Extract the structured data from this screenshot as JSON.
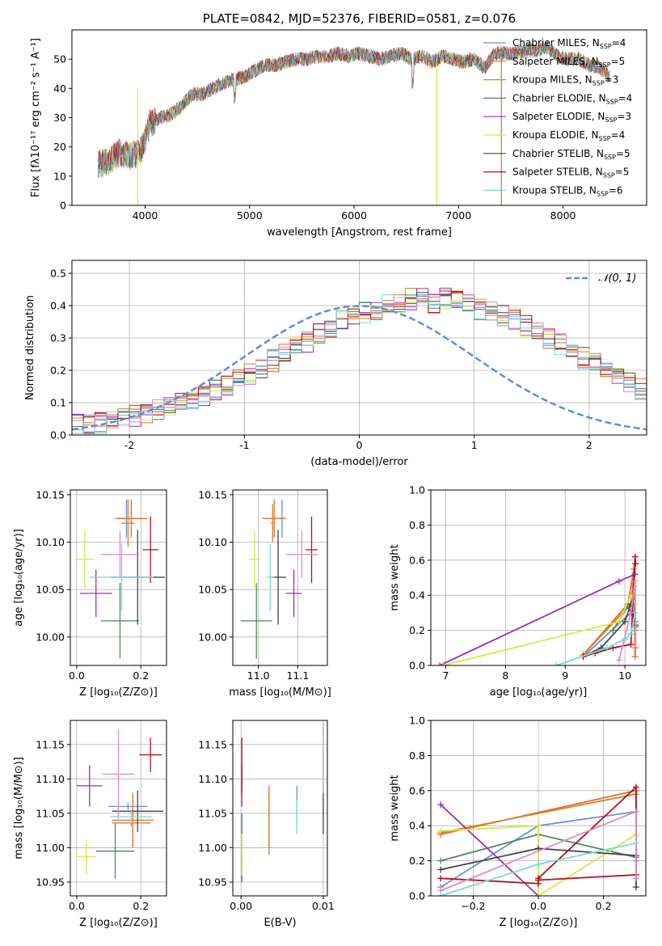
{
  "chart_data": [
    {
      "id": "spectrum",
      "type": "line",
      "title": "PLATE=0842, MJD=52376, FIBERID=0581, z=0.076",
      "xlabel": "wavelength [Angstrom, rest frame]",
      "ylabel": "Flux [fλ10⁻¹⁷ erg cm⁻² s⁻¹ A⁻¹]",
      "xlim": [
        3300,
        8800
      ],
      "ylim": [
        0,
        60
      ],
      "xticks": [
        4000,
        5000,
        6000,
        7000,
        8000
      ],
      "yticks": [
        0,
        10,
        20,
        30,
        40,
        50
      ],
      "legend_position": "top-right",
      "envelope": {
        "x": [
          3550,
          3650,
          3750,
          3850,
          3950,
          4050,
          4150,
          4250,
          4350,
          4450,
          4550,
          4650,
          4750,
          4850,
          4950,
          5050,
          5150,
          5250,
          5350,
          5450,
          5550,
          5650,
          5750,
          5850,
          5950,
          6050,
          6150,
          6250,
          6350,
          6450,
          6550,
          6650,
          6750,
          6850,
          6950,
          7050,
          7150,
          7250,
          7350,
          7450,
          7550,
          7650,
          7750,
          7850,
          7950,
          8050,
          8150,
          8250,
          8350,
          8450
        ],
        "y": [
          14,
          15,
          18,
          17,
          18,
          28,
          30,
          31,
          34,
          38,
          38,
          40,
          42,
          43,
          44,
          46,
          48,
          48,
          49,
          50,
          50,
          51,
          51,
          52,
          51,
          52,
          51,
          50,
          51,
          52,
          50,
          51,
          49,
          51,
          50,
          49,
          50,
          47,
          52,
          52,
          52,
          53,
          53,
          54,
          51,
          50,
          50,
          48,
          47,
          44
        ]
      },
      "series": [
        {
          "name": "Chabrier MILES, N_SSP=4",
          "color": "#6a8fd8"
        },
        {
          "name": "Salpeter MILES, N_SSP=5",
          "color": "#e56b2e"
        },
        {
          "name": "Kroupa MILES, N_SSP=3",
          "color": "#d4822a"
        },
        {
          "name": "Chabrier ELODIE, N_SSP=4",
          "color": "#4e8a5e"
        },
        {
          "name": "Salpeter ELODIE, N_SSP=3",
          "color": "#9b30b0"
        },
        {
          "name": "Kroupa ELODIE, N_SSP=4",
          "color": "#d6e64a"
        },
        {
          "name": "Chabrier STELIB, N_SSP=5",
          "color": "#444444"
        },
        {
          "name": "Salpeter STELIB, N_SSP=5",
          "color": "#b3141c"
        },
        {
          "name": "Kroupa STELIB, N_SSP=6",
          "color": "#7ad6e0"
        }
      ]
    },
    {
      "id": "residuals",
      "type": "line",
      "xlabel": "(data-model)/error",
      "ylabel": "Normed distribution",
      "xlim": [
        -2.5,
        2.5
      ],
      "ylim": [
        0,
        0.54
      ],
      "xticks": [
        -2,
        -1,
        0,
        1,
        2
      ],
      "yticks": [
        0.0,
        0.1,
        0.2,
        0.3,
        0.4,
        0.5
      ],
      "grid": true,
      "legend_position": "top-right",
      "reference": {
        "name": "𝒩(0, 1)",
        "color": "#5b8fd8",
        "style": "dashed"
      },
      "bin_width": 0.1,
      "hist_base": [
        0.03,
        0.03,
        0.035,
        0.04,
        0.05,
        0.06,
        0.07,
        0.08,
        0.09,
        0.1,
        0.11,
        0.12,
        0.14,
        0.155,
        0.17,
        0.185,
        0.21,
        0.23,
        0.25,
        0.27,
        0.29,
        0.31,
        0.33,
        0.35,
        0.37,
        0.38,
        0.39,
        0.4,
        0.41,
        0.42,
        0.42,
        0.41,
        0.42,
        0.41,
        0.4,
        0.39,
        0.38,
        0.37,
        0.36,
        0.34,
        0.32,
        0.3,
        0.28,
        0.26,
        0.24,
        0.22,
        0.2,
        0.18,
        0.16,
        0.14
      ]
    },
    {
      "id": "age_vs_Z",
      "type": "scatter",
      "xlabel": "Z [log₁₀(Z/Z⊙)]",
      "ylabel": "age  [log₁₀(age/yr)]",
      "xlim": [
        -0.02,
        0.28
      ],
      "ylim": [
        9.97,
        10.155
      ],
      "xticks": [
        0.0,
        0.2
      ],
      "yticks": [
        10.0,
        10.05,
        10.1,
        10.15
      ],
      "grid": true,
      "points": [
        {
          "x": 0.155,
          "y": 10.125,
          "xerr": 0.025,
          "yerr": 0.02,
          "color": "#6a8fd8"
        },
        {
          "x": 0.17,
          "y": 10.125,
          "xerr": 0.05,
          "yerr": 0.02,
          "color": "#e56b2e"
        },
        {
          "x": 0.16,
          "y": 10.12,
          "xerr": 0.02,
          "yerr": 0.025,
          "color": "#d4822a"
        },
        {
          "x": 0.135,
          "y": 10.017,
          "xerr": 0.06,
          "yerr": 0.04,
          "color": "#4e8a5e"
        },
        {
          "x": 0.06,
          "y": 10.046,
          "xerr": 0.05,
          "yerr": 0.025,
          "color": "#9b30b0"
        },
        {
          "x": 0.025,
          "y": 10.082,
          "xerr": 0.03,
          "yerr": 0.03,
          "color": "#d6e64a"
        },
        {
          "x": 0.19,
          "y": 10.063,
          "xerr": 0.085,
          "yerr": 0.05,
          "color": "#444444"
        },
        {
          "x": 0.23,
          "y": 10.092,
          "xerr": 0.025,
          "yerr": 0.035,
          "color": "#b3141c"
        },
        {
          "x": 0.135,
          "y": 10.087,
          "xerr": 0.06,
          "yerr": 0.025,
          "color": "#e28ac2"
        },
        {
          "x": 0.14,
          "y": 10.063,
          "xerr": 0.1,
          "yerr": 0.035,
          "color": "#7ad6e0"
        }
      ]
    },
    {
      "id": "age_vs_mass",
      "type": "scatter",
      "xlabel": "mass [log₁₀(M/M⊙)]",
      "ylabel": "",
      "xlim": [
        10.935,
        11.175
      ],
      "ylim": [
        9.97,
        10.155
      ],
      "xticks": [
        11.0,
        11.1
      ],
      "xticklabels": [
        "11.0",
        "11.1"
      ],
      "yticks": [
        10.0,
        10.05,
        10.1,
        10.15
      ],
      "grid": true,
      "points": [
        {
          "x": 11.06,
          "y": 10.125,
          "xerr": 0.005,
          "yerr": 0.02,
          "color": "#6a8fd8"
        },
        {
          "x": 11.04,
          "y": 10.125,
          "xerr": 0.03,
          "yerr": 0.02,
          "color": "#e56b2e"
        },
        {
          "x": 11.036,
          "y": 10.12,
          "xerr": 0.005,
          "yerr": 0.02,
          "color": "#d4822a"
        },
        {
          "x": 10.995,
          "y": 10.017,
          "xerr": 0.04,
          "yerr": 0.04,
          "color": "#4e8a5e"
        },
        {
          "x": 11.09,
          "y": 10.046,
          "xerr": 0.02,
          "yerr": 0.025,
          "color": "#9b30b0"
        },
        {
          "x": 10.99,
          "y": 10.082,
          "xerr": 0.015,
          "yerr": 0.03,
          "color": "#d6e64a"
        },
        {
          "x": 11.05,
          "y": 10.063,
          "xerr": 0.02,
          "yerr": 0.05,
          "color": "#444444"
        },
        {
          "x": 11.135,
          "y": 10.092,
          "xerr": 0.015,
          "yerr": 0.035,
          "color": "#b3141c"
        },
        {
          "x": 11.11,
          "y": 10.087,
          "xerr": 0.04,
          "yerr": 0.025,
          "color": "#e28ac2"
        },
        {
          "x": 11.03,
          "y": 10.063,
          "xerr": 0.01,
          "yerr": 0.035,
          "color": "#7ad6e0"
        }
      ]
    },
    {
      "id": "massweight_vs_age",
      "type": "line",
      "xlabel": "age  [log₁₀(age/yr)]",
      "ylabel": "mass weight",
      "xlim": [
        6.75,
        10.35
      ],
      "ylim": [
        0.0,
        1.0
      ],
      "xticks": [
        7,
        8,
        9,
        10
      ],
      "yticks": [
        0.0,
        0.2,
        0.4,
        0.6,
        0.8,
        1.0
      ],
      "grid": true,
      "series": [
        {
          "color": "#6a8fd8",
          "x": [
            9.3,
            10.1,
            10.15,
            10.17
          ],
          "y": [
            0.05,
            0.3,
            0.45,
            0.2
          ]
        },
        {
          "color": "#e56b2e",
          "x": [
            9.3,
            10.05,
            10.15,
            10.17,
            10.18
          ],
          "y": [
            0.06,
            0.35,
            0.55,
            0.05,
            0.1
          ]
        },
        {
          "color": "#d4822a",
          "x": [
            9.3,
            10.1,
            10.17
          ],
          "y": [
            0.06,
            0.35,
            0.58
          ]
        },
        {
          "color": "#4e8a5e",
          "x": [
            9.8,
            10.05,
            10.17,
            10.18
          ],
          "y": [
            0.2,
            0.34,
            0.25,
            0.22
          ]
        },
        {
          "color": "#9b30b0",
          "x": [
            6.9,
            9.9,
            10.17
          ],
          "y": [
            0.0,
            0.48,
            0.52
          ]
        },
        {
          "color": "#d6e64a",
          "x": [
            6.95,
            9.9,
            10.1,
            10.17
          ],
          "y": [
            0.0,
            0.25,
            0.4,
            0.35
          ]
        },
        {
          "color": "#444444",
          "x": [
            9.3,
            9.6,
            10.0,
            10.1,
            10.18
          ],
          "y": [
            0.05,
            0.1,
            0.25,
            0.35,
            0.23
          ]
        },
        {
          "color": "#b3141c",
          "x": [
            9.3,
            9.5,
            9.8,
            10.1,
            10.17,
            10.18
          ],
          "y": [
            0.05,
            0.07,
            0.1,
            0.12,
            0.62,
            0.58
          ]
        },
        {
          "color": "#e28ac2",
          "x": [
            9.9,
            10.1,
            10.17,
            10.18
          ],
          "y": [
            0.03,
            0.3,
            0.48,
            0.1
          ]
        },
        {
          "color": "#7ad6e0",
          "x": [
            8.85,
            9.7,
            10.0,
            10.1,
            10.17
          ],
          "y": [
            0.0,
            0.1,
            0.15,
            0.18,
            0.3
          ]
        }
      ]
    },
    {
      "id": "mass_vs_Z",
      "type": "scatter",
      "xlabel": "Z [log₁₀(Z/Z⊙)]",
      "ylabel": "mass [log₁₀(M/M⊙)]",
      "xlim": [
        -0.02,
        0.28
      ],
      "ylim": [
        10.93,
        11.185
      ],
      "xticks": [
        0.0,
        0.2
      ],
      "yticks": [
        10.95,
        11.0,
        11.05,
        11.1,
        11.15
      ],
      "grid": true,
      "points": [
        {
          "x": 0.16,
          "y": 11.06,
          "xerr": 0.06,
          "yerr": 0.005,
          "color": "#6a8fd8"
        },
        {
          "x": 0.175,
          "y": 11.04,
          "xerr": 0.065,
          "yerr": 0.04,
          "color": "#e56b2e"
        },
        {
          "x": 0.17,
          "y": 11.036,
          "xerr": 0.06,
          "yerr": 0.005,
          "color": "#d4822a"
        },
        {
          "x": 0.12,
          "y": 10.995,
          "xerr": 0.06,
          "yerr": 0.04,
          "color": "#4e8a5e"
        },
        {
          "x": 0.04,
          "y": 11.09,
          "xerr": 0.04,
          "yerr": 0.03,
          "color": "#9b30b0"
        },
        {
          "x": 0.03,
          "y": 10.987,
          "xerr": 0.03,
          "yerr": 0.025,
          "color": "#d6e64a"
        },
        {
          "x": 0.19,
          "y": 11.053,
          "xerr": 0.08,
          "yerr": 0.03,
          "color": "#444444"
        },
        {
          "x": 0.23,
          "y": 11.135,
          "xerr": 0.035,
          "yerr": 0.025,
          "color": "#b3141c"
        },
        {
          "x": 0.13,
          "y": 11.107,
          "xerr": 0.05,
          "yerr": 0.065,
          "color": "#e28ac2"
        },
        {
          "x": 0.17,
          "y": 11.045,
          "xerr": 0.065,
          "yerr": 0.01,
          "color": "#7ad6e0"
        }
      ]
    },
    {
      "id": "mass_vs_ebv",
      "type": "scatter",
      "xlabel": "E(B-V)",
      "ylabel": "",
      "xlim": [
        -0.001,
        0.0105
      ],
      "ylim": [
        10.93,
        11.185
      ],
      "xticks": [
        0.0,
        0.01
      ],
      "xticklabels": [
        "0.00",
        "0.01"
      ],
      "yticks": [
        10.95,
        11.0,
        11.05,
        11.1,
        11.15
      ],
      "grid": true,
      "points": [
        {
          "x": 0.0068,
          "y": 11.06,
          "xerr": 0,
          "yerr": 0.03,
          "color": "#6a8fd8"
        },
        {
          "x": 0.0034,
          "y": 11.04,
          "xerr": 0,
          "yerr": 0.05,
          "color": "#e56b2e"
        },
        {
          "x": 0.0034,
          "y": 11.036,
          "xerr": 0,
          "yerr": 0.04,
          "color": "#d4822a"
        },
        {
          "x": 0.0001,
          "y": 11.0,
          "xerr": 0,
          "yerr": 0.05,
          "color": "#4e8a5e"
        },
        {
          "x": 0.0001,
          "y": 11.09,
          "xerr": 0,
          "yerr": 0.03,
          "color": "#9b30b0"
        },
        {
          "x": 0.0001,
          "y": 10.99,
          "xerr": 0,
          "yerr": 0.03,
          "color": "#d6e64a"
        },
        {
          "x": 0.01,
          "y": 11.05,
          "xerr": 0,
          "yerr": 0.03,
          "color": "#444444"
        },
        {
          "x": 0.0001,
          "y": 11.12,
          "xerr": 0,
          "yerr": 0.04,
          "color": "#b3141c"
        },
        {
          "x": 0.01,
          "y": 11.13,
          "xerr": 0,
          "yerr": 0.05,
          "color": "#e28ac2"
        },
        {
          "x": 0.0068,
          "y": 11.045,
          "xerr": 0,
          "yerr": 0.025,
          "color": "#7ad6e0"
        }
      ]
    },
    {
      "id": "massweight_vs_Z",
      "type": "line",
      "xlabel": "Z [log₁₀(Z/Z⊙)]",
      "ylabel": "mass weight",
      "xlim": [
        -0.33,
        0.33
      ],
      "ylim": [
        0.0,
        1.0
      ],
      "xticks": [
        -0.2,
        0.0,
        0.2
      ],
      "xticklabels": [
        "−0.2",
        "0.0",
        "0.2"
      ],
      "yticks": [
        0.0,
        0.2,
        0.4,
        0.6,
        0.8,
        1.0
      ],
      "grid": true,
      "series": [
        {
          "color": "#6a8fd8",
          "x": [
            -0.3,
            0.0,
            0.3,
            0.3
          ],
          "y": [
            0.05,
            0.4,
            0.48,
            0.2
          ]
        },
        {
          "color": "#e56b2e",
          "x": [
            -0.3,
            0.3,
            0.3
          ],
          "y": [
            0.35,
            0.6,
            0.05
          ]
        },
        {
          "color": "#d4822a",
          "x": [
            -0.3,
            0.3
          ],
          "y": [
            0.36,
            0.58
          ]
        },
        {
          "color": "#4e8a5e",
          "x": [
            -0.3,
            0.0,
            0.3
          ],
          "y": [
            0.2,
            0.35,
            0.22
          ]
        },
        {
          "color": "#9b30b0",
          "x": [
            -0.3,
            0.0
          ],
          "y": [
            0.52,
            0.0
          ]
        },
        {
          "color": "#d6e64a",
          "x": [
            -0.3,
            0.0,
            0.0,
            0.3
          ],
          "y": [
            0.37,
            0.4,
            0.0,
            0.35
          ]
        },
        {
          "color": "#444444",
          "x": [
            -0.3,
            0.0,
            0.3,
            0.3
          ],
          "y": [
            0.15,
            0.27,
            0.23,
            0.05
          ]
        },
        {
          "color": "#b3141c",
          "x": [
            -0.3,
            0.0,
            0.0,
            0.3,
            0.3,
            0.0
          ],
          "y": [
            0.1,
            0.07,
            0.1,
            0.62,
            0.12,
            0.09
          ]
        },
        {
          "color": "#e28ac2",
          "x": [
            -0.3,
            0.3,
            0.3
          ],
          "y": [
            0.03,
            0.48,
            0.1
          ]
        },
        {
          "color": "#7ad6e0",
          "x": [
            -0.3,
            0.0,
            0.3
          ],
          "y": [
            0.0,
            0.18,
            0.3
          ]
        }
      ]
    }
  ]
}
